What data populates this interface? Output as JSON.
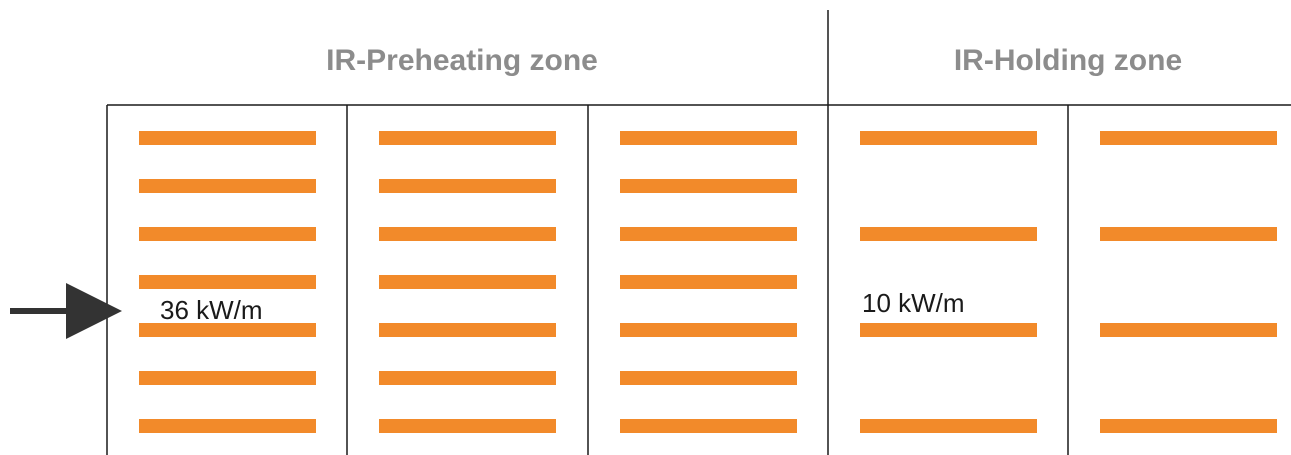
{
  "zones": [
    {
      "title": "IR-Preheating zone",
      "label": "36 kW/m"
    },
    {
      "title": "IR-Holding zone",
      "label": "10 kW/m"
    }
  ]
}
